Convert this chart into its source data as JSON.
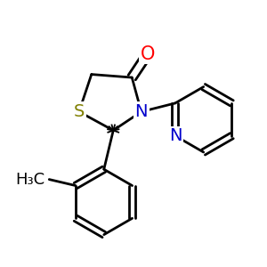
{
  "bg_color": "#ffffff",
  "atom_colors": {
    "C": "#000000",
    "N": "#0000cc",
    "O": "#ff0000",
    "S": "#808000",
    "H": "#000000"
  },
  "bond_color": "#000000",
  "bond_width": 2.0,
  "font_size_atom": 14,
  "font_size_label": 12
}
